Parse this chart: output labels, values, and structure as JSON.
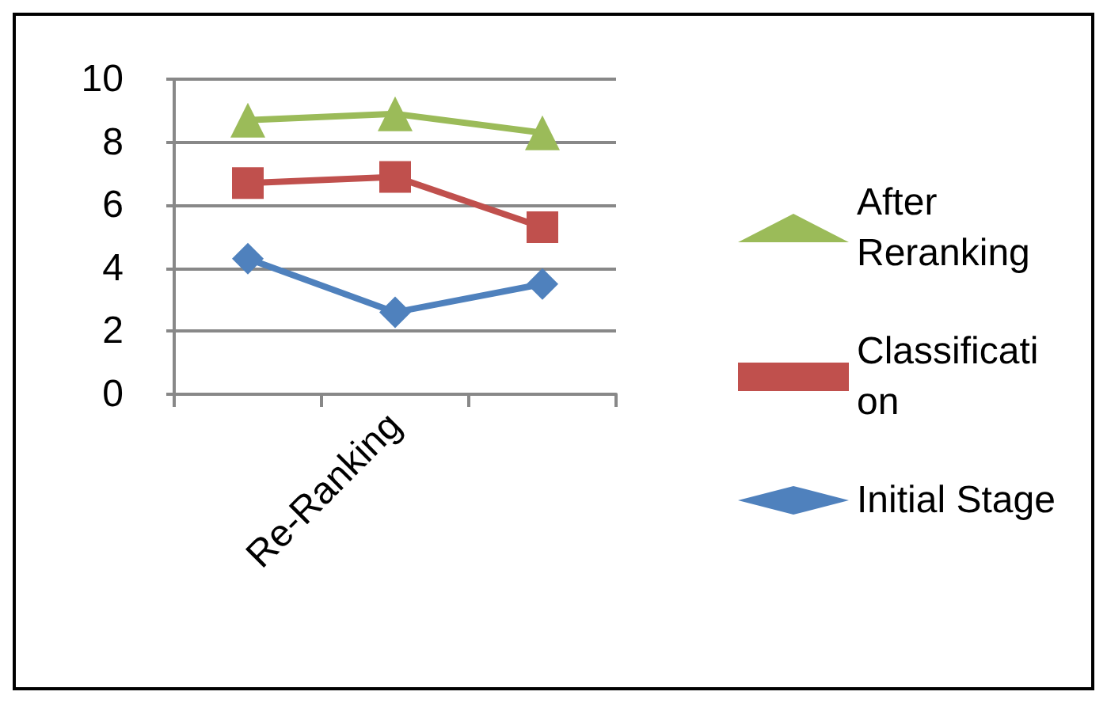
{
  "chart_data": {
    "type": "line",
    "categories": [
      null,
      "Re-Ranking",
      null
    ],
    "ylim": [
      0,
      10
    ],
    "yticks": [
      0,
      2,
      4,
      6,
      8,
      10
    ],
    "grid": "y",
    "legend": "right",
    "series": [
      {
        "name": "After Reranking",
        "color": "#9bbb59",
        "marker": "triangle",
        "values": [
          8.7,
          8.9,
          8.3
        ]
      },
      {
        "name": "Classification",
        "color": "#c0504d",
        "marker": "square",
        "values": [
          6.7,
          6.9,
          5.3
        ]
      },
      {
        "name": "Initial Stage",
        "color": "#4f81bd",
        "marker": "diamond",
        "values": [
          4.3,
          2.6,
          3.5
        ]
      }
    ]
  }
}
